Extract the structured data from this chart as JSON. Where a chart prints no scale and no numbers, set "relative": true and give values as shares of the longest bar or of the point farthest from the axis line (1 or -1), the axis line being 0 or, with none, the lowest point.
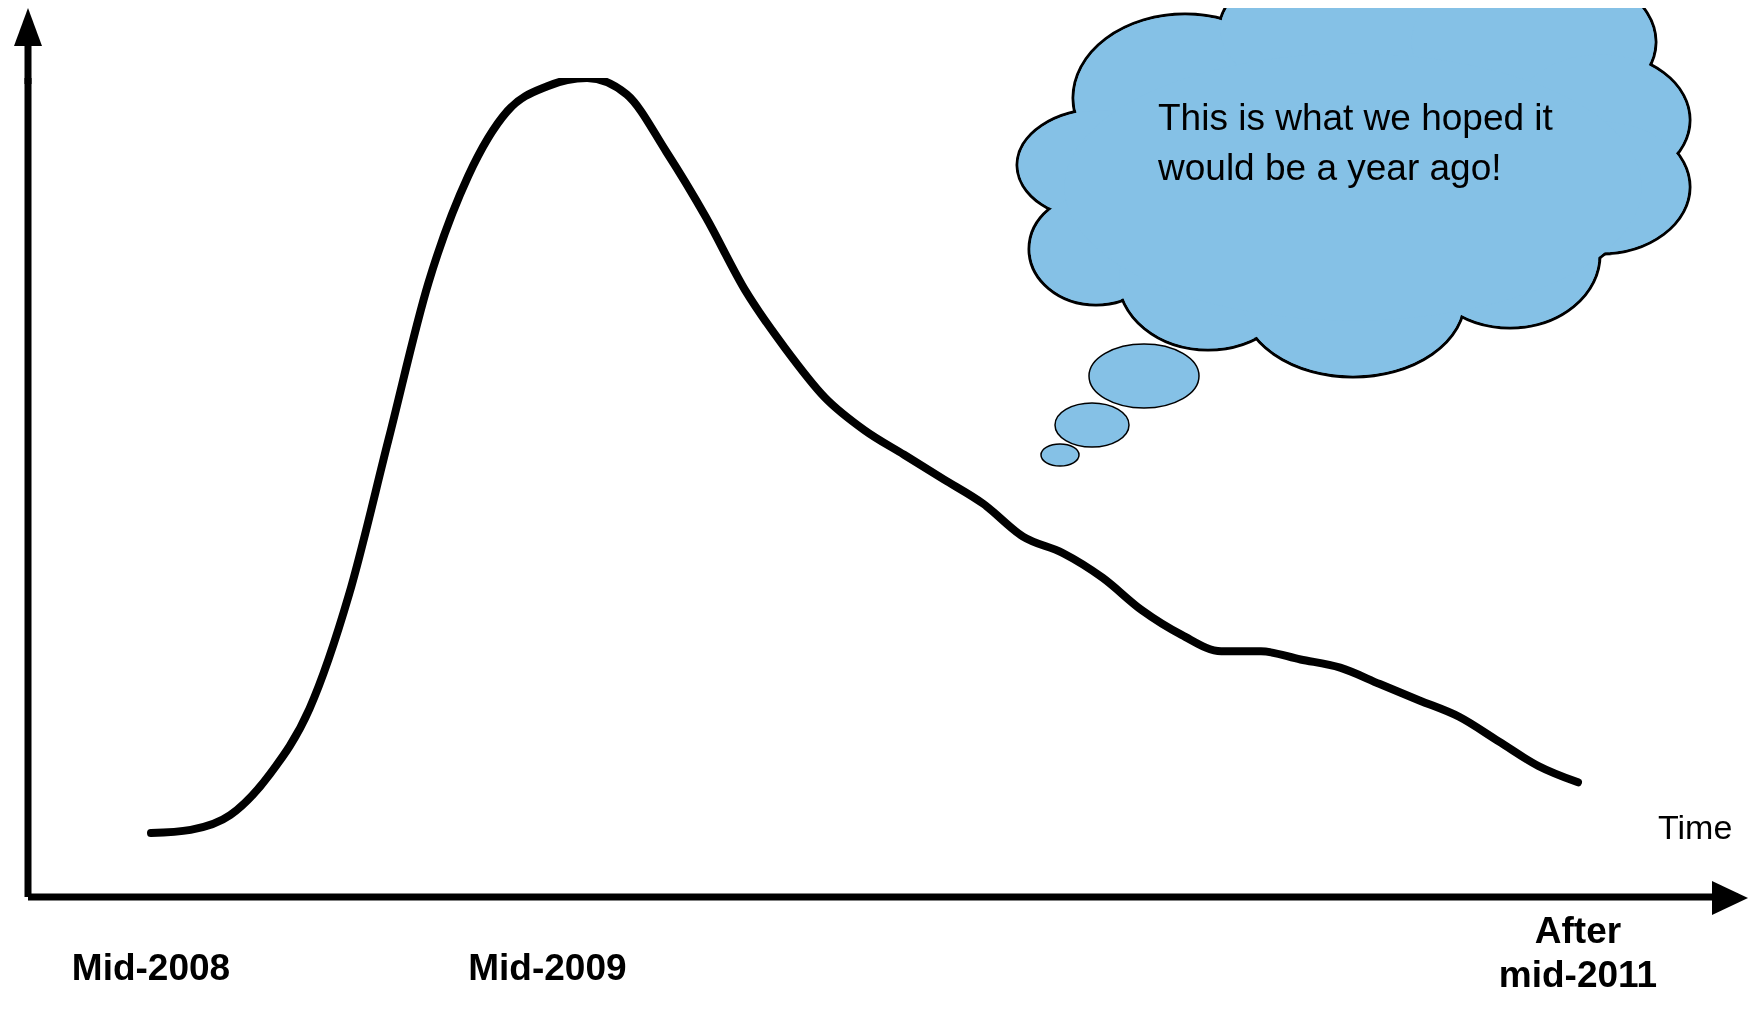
{
  "chart_data": {
    "type": "line",
    "relative": true,
    "xlabel": "Time",
    "annotations": [
      "This is what we hoped it would be a year ago!"
    ],
    "categories": [
      "Mid-2008",
      null,
      null,
      null,
      null,
      null,
      null,
      null,
      null,
      null,
      "Mid-2009",
      null,
      null,
      null,
      null,
      null,
      null,
      null,
      null,
      null,
      null,
      null,
      null,
      null,
      null,
      null,
      null,
      null,
      null,
      null,
      null,
      null,
      null,
      null,
      null,
      null,
      "After mid-2011"
    ],
    "series": [
      {
        "color": "#000000",
        "values": [
          0.078,
          0.082,
          0.1,
          0.15,
          0.23,
          0.37,
          0.56,
          0.75,
          0.88,
          0.96,
          0.99,
          1.0,
          0.98,
          0.91,
          0.83,
          0.74,
          0.67,
          0.61,
          0.57,
          0.54,
          0.51,
          0.48,
          0.44,
          0.42,
          0.39,
          0.35,
          0.32,
          0.3,
          0.3,
          0.29,
          0.28,
          0.26,
          0.24,
          0.22,
          0.19,
          0.16,
          0.14
        ]
      }
    ],
    "marker": "none",
    "line_style": "solid",
    "grid": false,
    "legend": false
  }
}
